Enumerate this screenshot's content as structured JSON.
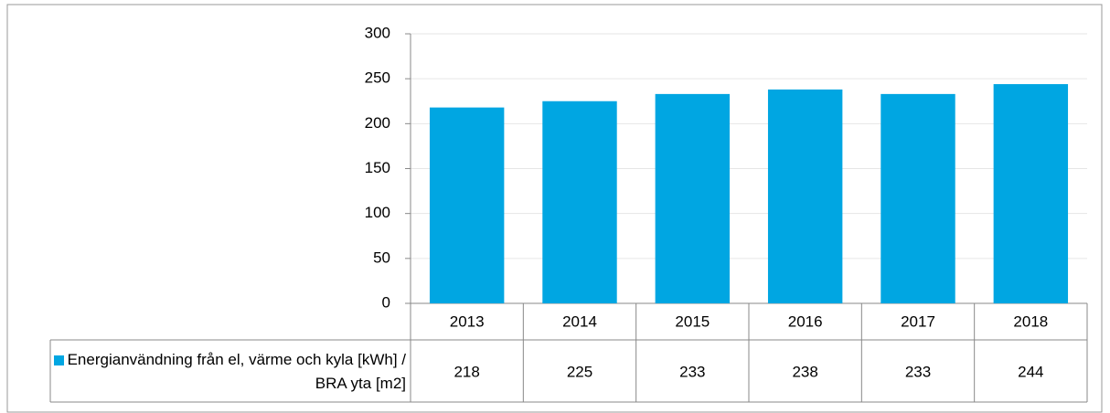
{
  "chart_data": {
    "type": "bar",
    "categories": [
      "2013",
      "2014",
      "2015",
      "2016",
      "2017",
      "2018"
    ],
    "series": [
      {
        "name": "Energianvändning från el, värme och kyla [kWh] / BRA yta [m2]",
        "color": "#00a6e2",
        "values": [
          218,
          225,
          233,
          238,
          233,
          244
        ]
      }
    ],
    "ylim": [
      0,
      300
    ],
    "yticks": [
      0,
      50,
      100,
      150,
      200,
      250,
      300
    ],
    "grid": true
  }
}
